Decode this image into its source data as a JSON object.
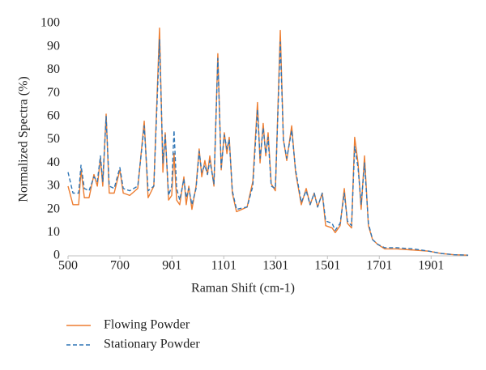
{
  "chart_data": {
    "type": "line",
    "xlabel": "Raman Shift (cm-1)",
    "ylabel": "Normalized Spectra (%)",
    "x": [
      500,
      519,
      541,
      550,
      563,
      581,
      600,
      613,
      625,
      634,
      647,
      659,
      678,
      700,
      713,
      738,
      769,
      794,
      809,
      831,
      853,
      866,
      875,
      888,
      900,
      909,
      919,
      931,
      947,
      956,
      966,
      978,
      994,
      1006,
      1016,
      1028,
      1038,
      1047,
      1063,
      1078,
      1091,
      1103,
      1113,
      1122,
      1134,
      1150,
      1191,
      1213,
      1231,
      1241,
      1253,
      1263,
      1272,
      1284,
      1300,
      1319,
      1331,
      1344,
      1363,
      1378,
      1400,
      1419,
      1434,
      1450,
      1463,
      1481,
      1494,
      1519,
      1531,
      1550,
      1566,
      1578,
      1594,
      1606,
      1619,
      1631,
      1644,
      1659,
      1675,
      1694,
      1722,
      1769,
      1831,
      1894,
      1941,
      1988,
      2044
    ],
    "series": [
      {
        "name": "Flowing Powder",
        "color": "#ed7d31",
        "dash": false,
        "values": [
          30,
          22,
          22,
          37,
          25,
          25,
          35,
          30,
          42,
          30,
          61,
          27,
          27,
          37,
          27,
          26,
          29,
          58,
          25,
          30,
          98,
          36,
          53,
          24,
          26,
          44,
          24,
          22,
          34,
          22,
          30,
          20,
          30,
          46,
          34,
          41,
          35,
          43,
          30,
          87,
          37,
          53,
          44,
          51,
          27,
          19,
          21,
          32,
          66,
          40,
          57,
          43,
          53,
          31,
          28,
          97,
          50,
          41,
          56,
          36,
          22,
          29,
          22,
          27,
          21,
          27,
          13,
          12,
          10,
          13,
          29,
          14,
          12,
          51,
          40,
          20,
          43,
          13,
          7,
          5,
          3,
          3,
          2.5,
          2,
          1,
          0.5,
          0.3
        ]
      },
      {
        "name": "Stationary Powder",
        "color": "#2e75b6",
        "dash": true,
        "values": [
          36,
          27,
          27,
          39,
          29,
          28,
          34,
          32,
          43,
          32,
          60,
          30,
          29,
          38,
          29,
          28,
          30,
          56,
          28,
          30,
          93,
          40,
          52,
          26,
          30,
          54,
          29,
          24,
          33,
          25,
          29,
          22,
          29,
          45,
          36,
          39,
          35,
          41,
          31,
          85,
          38,
          52,
          46,
          50,
          28,
          20,
          21,
          30,
          63,
          42,
          55,
          44,
          51,
          30,
          29,
          92,
          50,
          42,
          54,
          37,
          23,
          28,
          22,
          27,
          21,
          27,
          15,
          14,
          11,
          14,
          27,
          15,
          13,
          47,
          38,
          22,
          40,
          14,
          7,
          5,
          3.5,
          3.5,
          3,
          2,
          1,
          0.5,
          0.3
        ]
      }
    ],
    "xlim": [
      500,
      2044
    ],
    "xticks": [
      500,
      700,
      901,
      1101,
      1301,
      1501,
      1701,
      1901
    ],
    "ylim": [
      0,
      100
    ],
    "yticks": [
      0,
      10,
      20,
      30,
      40,
      50,
      60,
      70,
      80,
      90,
      100
    ],
    "grid": false,
    "legend": "bottom"
  }
}
